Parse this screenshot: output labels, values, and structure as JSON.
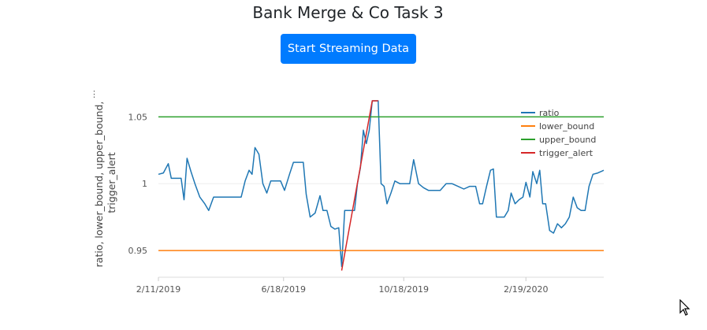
{
  "header": {
    "title": "Bank Merge & Co Task 3",
    "stream_button_label": "Start Streaming Data"
  },
  "chart_data": {
    "type": "line",
    "ylabel_lines": [
      "ratio, lower_bound, upper_bound,",
      "trigger_alert"
    ],
    "xlabel": "",
    "x_ticks": [
      "2/11/2019",
      "6/18/2019",
      "10/18/2019",
      "2/19/2020"
    ],
    "y_ticks": [
      "0.95",
      "1",
      "1.05"
    ],
    "ylim": [
      0.93,
      1.062
    ],
    "grid": true,
    "legend_position": "top-right",
    "x_domain": [
      "2019-02-11",
      "2020-05-08"
    ],
    "series": [
      {
        "name": "ratio",
        "color": "#1f77b4",
        "points": [
          [
            "2019-02-11",
            1.007
          ],
          [
            "2019-02-16",
            1.008
          ],
          [
            "2019-02-21",
            1.015
          ],
          [
            "2019-02-24",
            1.004
          ],
          [
            "2019-03-01",
            1.004
          ],
          [
            "2019-03-06",
            1.004
          ],
          [
            "2019-03-09",
            0.988
          ],
          [
            "2019-03-12",
            1.019
          ],
          [
            "2019-03-16",
            1.009
          ],
          [
            "2019-03-20",
            1.0
          ],
          [
            "2019-03-25",
            0.99
          ],
          [
            "2019-03-30",
            0.985
          ],
          [
            "2019-04-03",
            0.98
          ],
          [
            "2019-04-08",
            0.99
          ],
          [
            "2019-04-15",
            0.99
          ],
          [
            "2019-04-22",
            0.99
          ],
          [
            "2019-04-29",
            0.99
          ],
          [
            "2019-05-06",
            0.99
          ],
          [
            "2019-05-10",
            1.002
          ],
          [
            "2019-05-14",
            1.01
          ],
          [
            "2019-05-17",
            1.007
          ],
          [
            "2019-05-20",
            1.027
          ],
          [
            "2019-05-24",
            1.022
          ],
          [
            "2019-05-28",
            1.0
          ],
          [
            "2019-06-01",
            0.993
          ],
          [
            "2019-06-05",
            1.002
          ],
          [
            "2019-06-10",
            1.002
          ],
          [
            "2019-06-15",
            1.002
          ],
          [
            "2019-06-19",
            0.995
          ],
          [
            "2019-06-24",
            1.007
          ],
          [
            "2019-06-28",
            1.016
          ],
          [
            "2019-07-03",
            1.016
          ],
          [
            "2019-07-08",
            1.016
          ],
          [
            "2019-07-11",
            0.992
          ],
          [
            "2019-07-15",
            0.975
          ],
          [
            "2019-07-20",
            0.978
          ],
          [
            "2019-07-25",
            0.991
          ],
          [
            "2019-07-28",
            0.98
          ],
          [
            "2019-08-01",
            0.98
          ],
          [
            "2019-08-05",
            0.968
          ],
          [
            "2019-08-09",
            0.966
          ],
          [
            "2019-08-13",
            0.967
          ],
          [
            "2019-08-16",
            0.938
          ],
          [
            "2019-08-19",
            0.98
          ],
          [
            "2019-08-23",
            0.98
          ],
          [
            "2019-08-26",
            0.98
          ],
          [
            "2019-08-29",
            0.98
          ],
          [
            "2019-09-01",
            1.0
          ],
          [
            "2019-09-04",
            1.012
          ],
          [
            "2019-09-07",
            1.04
          ],
          [
            "2019-09-10",
            1.03
          ],
          [
            "2019-09-13",
            1.04
          ],
          [
            "2019-09-16",
            1.062
          ],
          [
            "2019-09-19",
            1.062
          ],
          [
            "2019-09-22",
            1.062
          ],
          [
            "2019-09-25",
            1.0
          ],
          [
            "2019-09-28",
            0.998
          ],
          [
            "2019-10-01",
            0.985
          ],
          [
            "2019-10-05",
            0.993
          ],
          [
            "2019-10-09",
            1.002
          ],
          [
            "2019-10-14",
            1.0
          ],
          [
            "2019-10-19",
            1.0
          ],
          [
            "2019-10-24",
            1.0
          ],
          [
            "2019-10-28",
            1.018
          ],
          [
            "2019-11-02",
            1.0
          ],
          [
            "2019-11-07",
            0.997
          ],
          [
            "2019-11-12",
            0.995
          ],
          [
            "2019-11-18",
            0.995
          ],
          [
            "2019-11-24",
            0.995
          ],
          [
            "2019-11-30",
            1.0
          ],
          [
            "2019-12-06",
            1.0
          ],
          [
            "2019-12-12",
            0.998
          ],
          [
            "2019-12-18",
            0.996
          ],
          [
            "2019-12-24",
            0.998
          ],
          [
            "2019-12-30",
            0.998
          ],
          [
            "2020-01-03",
            0.985
          ],
          [
            "2020-01-06",
            0.985
          ],
          [
            "2020-01-10",
            0.998
          ],
          [
            "2020-01-14",
            1.01
          ],
          [
            "2020-01-17",
            1.011
          ],
          [
            "2020-01-20",
            0.975
          ],
          [
            "2020-01-24",
            0.975
          ],
          [
            "2020-01-28",
            0.975
          ],
          [
            "2020-02-01",
            0.98
          ],
          [
            "2020-02-04",
            0.993
          ],
          [
            "2020-02-08",
            0.985
          ],
          [
            "2020-02-12",
            0.988
          ],
          [
            "2020-02-16",
            0.99
          ],
          [
            "2020-02-19",
            1.001
          ],
          [
            "2020-02-23",
            0.99
          ],
          [
            "2020-02-26",
            1.009
          ],
          [
            "2020-03-01",
            1.0
          ],
          [
            "2020-03-04",
            1.01
          ],
          [
            "2020-03-07",
            0.985
          ],
          [
            "2020-03-10",
            0.985
          ],
          [
            "2020-03-14",
            0.965
          ],
          [
            "2020-03-18",
            0.963
          ],
          [
            "2020-03-22",
            0.97
          ],
          [
            "2020-03-26",
            0.967
          ],
          [
            "2020-03-30",
            0.97
          ],
          [
            "2020-04-03",
            0.975
          ],
          [
            "2020-04-07",
            0.99
          ],
          [
            "2020-04-11",
            0.982
          ],
          [
            "2020-04-15",
            0.98
          ],
          [
            "2020-04-19",
            0.98
          ],
          [
            "2020-04-23",
            0.998
          ],
          [
            "2020-04-27",
            1.007
          ],
          [
            "2020-05-02",
            1.008
          ],
          [
            "2020-05-08",
            1.01
          ]
        ]
      },
      {
        "name": "lower_bound",
        "color": "#ff7f0e",
        "points": [
          [
            "2019-02-11",
            0.95
          ],
          [
            "2020-05-08",
            0.95
          ]
        ]
      },
      {
        "name": "upper_bound",
        "color": "#2ca02c",
        "points": [
          [
            "2019-02-11",
            1.05
          ],
          [
            "2020-05-08",
            1.05
          ]
        ]
      },
      {
        "name": "trigger_alert",
        "color": "#d62728",
        "points": [
          [
            "2019-08-16",
            0.935
          ],
          [
            "2019-09-16",
            1.062
          ],
          [
            "2019-09-22",
            1.062
          ]
        ]
      }
    ]
  }
}
